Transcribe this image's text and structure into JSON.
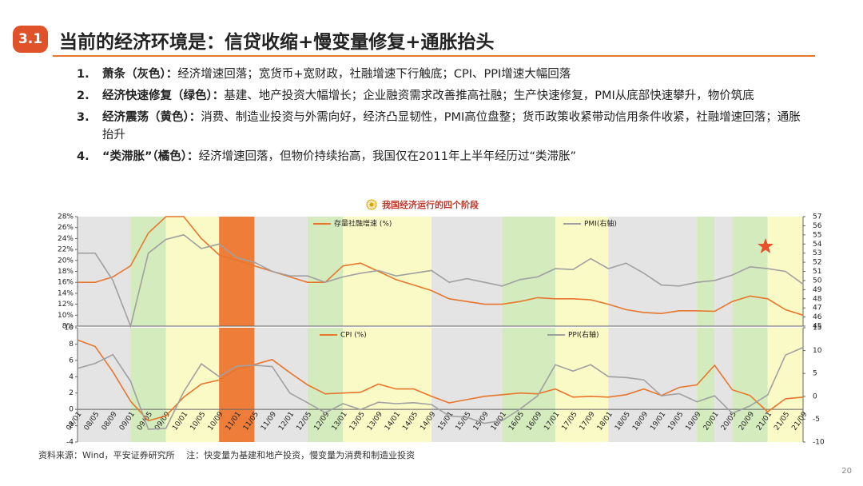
{
  "header": {
    "badge": "3.1",
    "title": "当前的经济环境是：信贷收缩+慢变量修复+通胀抬头"
  },
  "points": [
    {
      "number": "1.",
      "label": "萧条（灰色）：",
      "text": "经济增速回落；宽货币+宽财政，社融增速下行触底；CPI、PPI增速大幅回落"
    },
    {
      "number": "2.",
      "label": "经济快速修复（绿色）：",
      "text": "基建、地产投资大幅增长；企业融资需求改善推高社融；生产快速修复，PMI从底部快速攀升，物价筑底"
    },
    {
      "number": "3.",
      "label": "经济震荡（黄色）：",
      "text": "消费、制造业投资与外需向好，经济凸显韧性，PMI高位盘整；货币政策收紧带动信用条件收紧，社融增速回落；通胀抬升"
    },
    {
      "number": "4.",
      "label": "“类滞胀”（橘色）：",
      "text": "经济增速回落，但物价持续抬高，我国仅在2011年上半年经历过“类滞胀”"
    }
  ],
  "chart_caption": "我国经济运行的四个阶段",
  "chart_data": [
    {
      "type": "line",
      "categories": [
        "08/01",
        "08/05",
        "08/09",
        "09/01",
        "09/05",
        "09/09",
        "10/01",
        "10/05",
        "10/09",
        "11/01",
        "11/05",
        "11/09",
        "12/01",
        "12/05",
        "12/09",
        "13/01",
        "13/05",
        "13/09",
        "14/01",
        "14/05",
        "14/09",
        "15/01",
        "15/05",
        "15/09",
        "16/01",
        "16/05",
        "16/09",
        "17/01",
        "17/05",
        "17/09",
        "18/01",
        "18/05",
        "18/09",
        "19/01",
        "19/05",
        "19/09",
        "20/01",
        "20/05",
        "20/09",
        "21/01",
        "21/05",
        "21/09"
      ],
      "series": [
        {
          "name": "存量社融增速 (%)",
          "color": "#e8762d",
          "values": [
            16,
            16,
            17,
            19,
            25,
            28,
            28,
            24,
            21,
            20,
            19,
            18,
            17,
            16,
            16,
            19,
            19.5,
            18,
            16.5,
            15.5,
            14.5,
            13,
            12.5,
            12,
            12,
            12.5,
            13.2,
            13,
            13,
            12.8,
            12,
            11,
            10.5,
            10.3,
            10.8,
            10.8,
            10.7,
            12.5,
            13.5,
            13,
            11,
            10
          ]
        },
        {
          "name": "PMI(右轴)",
          "color": "#a0a0a0",
          "axis": "y2",
          "values": [
            53,
            53,
            50,
            45,
            53,
            54.5,
            55,
            53.5,
            54,
            52.5,
            52,
            51,
            50.5,
            50.5,
            49.8,
            50.4,
            50.8,
            51.1,
            50.5,
            50.8,
            51.1,
            49.8,
            50.2,
            49.8,
            49.4,
            50.1,
            50.4,
            51.3,
            51.2,
            52.4,
            51.3,
            51.9,
            50.8,
            49.5,
            49.4,
            49.8,
            50,
            50.6,
            51.5,
            51.3,
            51,
            49.6
          ]
        }
      ],
      "ylim": [
        8,
        28
      ],
      "yticks": [
        {
          "value": 8,
          "label": "8%"
        },
        {
          "value": 10,
          "label": "10%"
        },
        {
          "value": 12,
          "label": "12%"
        },
        {
          "value": 14,
          "label": "14%"
        },
        {
          "value": 16,
          "label": "16%"
        },
        {
          "value": 18,
          "label": "18%"
        },
        {
          "value": 20,
          "label": "20%"
        },
        {
          "value": 22,
          "label": "22%"
        },
        {
          "value": 24,
          "label": "24%"
        },
        {
          "value": 26,
          "label": "26%"
        },
        {
          "value": 28,
          "label": "28%"
        }
      ],
      "y2lim": [
        45,
        57
      ],
      "y2ticks": [
        45,
        46,
        47,
        48,
        49,
        50,
        51,
        52,
        53,
        54,
        55,
        56,
        57
      ],
      "phases": [
        {
          "from": "08/01",
          "to": "09/01",
          "color": "#e4e4e4"
        },
        {
          "from": "09/01",
          "to": "09/09",
          "color": "#d3ebbd"
        },
        {
          "from": "09/09",
          "to": "10/09",
          "color": "#fafac6"
        },
        {
          "from": "10/09",
          "to": "11/05",
          "color": "#ee7d3a"
        },
        {
          "from": "11/05",
          "to": "12/05",
          "color": "#e4e4e4"
        },
        {
          "from": "12/05",
          "to": "13/01",
          "color": "#d3ebbd"
        },
        {
          "from": "13/01",
          "to": "14/09",
          "color": "#fafac6"
        },
        {
          "from": "14/09",
          "to": "16/01",
          "color": "#e4e4e4"
        },
        {
          "from": "16/01",
          "to": "17/01",
          "color": "#d3ebbd"
        },
        {
          "from": "17/01",
          "to": "18/01",
          "color": "#fafac6"
        },
        {
          "from": "18/01",
          "to": "19/09",
          "color": "#e4e4e4"
        },
        {
          "from": "19/09",
          "to": "20/01",
          "color": "#d3ebbd"
        },
        {
          "from": "20/01",
          "to": "20/05",
          "color": "#e4e4e4"
        },
        {
          "from": "20/05",
          "to": "21/01",
          "color": "#d3ebbd"
        },
        {
          "from": "21/01",
          "to": "21/09",
          "color": "#fafac6"
        }
      ]
    },
    {
      "type": "line",
      "categories": [
        "08/01",
        "08/05",
        "08/09",
        "09/01",
        "09/05",
        "09/09",
        "10/01",
        "10/05",
        "10/09",
        "11/01",
        "11/05",
        "11/09",
        "12/01",
        "12/05",
        "12/09",
        "13/01",
        "13/05",
        "13/09",
        "14/01",
        "14/05",
        "14/09",
        "15/01",
        "15/05",
        "15/09",
        "16/01",
        "16/05",
        "16/09",
        "17/01",
        "17/05",
        "17/09",
        "18/01",
        "18/05",
        "18/09",
        "19/01",
        "19/05",
        "19/09",
        "20/01",
        "20/05",
        "20/09",
        "21/01",
        "21/05",
        "21/09"
      ],
      "series": [
        {
          "name": "CPI (%)",
          "color": "#e8762d",
          "values": [
            8.5,
            7.7,
            4.6,
            1,
            -1.4,
            -0.8,
            1.5,
            3.1,
            3.6,
            4.9,
            5.5,
            6.1,
            4.5,
            3,
            1.9,
            2,
            2.1,
            3.1,
            2.5,
            2.5,
            1.6,
            0.8,
            1.2,
            1.6,
            1.8,
            2,
            1.9,
            2.5,
            1.5,
            1.6,
            1.5,
            1.8,
            2.5,
            1.7,
            2.7,
            3,
            5.4,
            2.4,
            1.7,
            -0.3,
            1.3,
            1.5
          ]
        },
        {
          "name": "PPI(右轴)",
          "color": "#a0a0a0",
          "axis": "y2",
          "values": [
            6.1,
            7.2,
            9.1,
            3.3,
            -7.2,
            -7,
            1,
            7.1,
            4.3,
            6.6,
            6.8,
            6.5,
            0.7,
            -1.4,
            -3.6,
            -1.6,
            -2.9,
            -1.3,
            -1.6,
            -1.4,
            -1.8,
            -4.3,
            -4.6,
            -5.9,
            -5.3,
            -2.8,
            0.1,
            6.9,
            5.5,
            6.9,
            4.3,
            4.1,
            3.6,
            0.1,
            0.6,
            -1.2,
            0.1,
            -3.7,
            -2.1,
            0.3,
            9,
            10.7
          ]
        }
      ],
      "ylim": [
        -4,
        10
      ],
      "yticks": [
        -4,
        -2,
        0,
        2,
        4,
        6,
        8,
        10
      ],
      "y2lim": [
        -10,
        15
      ],
      "y2ticks": [
        -10,
        -5,
        0,
        5,
        10,
        15
      ],
      "phases": [
        {
          "from": "08/01",
          "to": "09/01",
          "color": "#e4e4e4"
        },
        {
          "from": "09/01",
          "to": "09/09",
          "color": "#d3ebbd"
        },
        {
          "from": "09/09",
          "to": "10/09",
          "color": "#fafac6"
        },
        {
          "from": "10/09",
          "to": "11/05",
          "color": "#ee7d3a"
        },
        {
          "from": "11/05",
          "to": "12/05",
          "color": "#e4e4e4"
        },
        {
          "from": "12/05",
          "to": "13/01",
          "color": "#d3ebbd"
        },
        {
          "from": "13/01",
          "to": "14/09",
          "color": "#fafac6"
        },
        {
          "from": "14/09",
          "to": "16/01",
          "color": "#e4e4e4"
        },
        {
          "from": "16/01",
          "to": "17/01",
          "color": "#d3ebbd"
        },
        {
          "from": "17/01",
          "to": "18/01",
          "color": "#fafac6"
        },
        {
          "from": "18/01",
          "to": "19/09",
          "color": "#e4e4e4"
        },
        {
          "from": "19/09",
          "to": "20/01",
          "color": "#d3ebbd"
        },
        {
          "from": "20/01",
          "to": "20/05",
          "color": "#e4e4e4"
        },
        {
          "from": "20/05",
          "to": "21/01",
          "color": "#d3ebbd"
        },
        {
          "from": "21/01",
          "to": "21/09",
          "color": "#fafac6"
        }
      ]
    }
  ],
  "source": "资料来源：Wind，平安证券研究所　 注：快变量为基建和地产投资，慢变量为消费和制造业投资",
  "page_number": "20"
}
